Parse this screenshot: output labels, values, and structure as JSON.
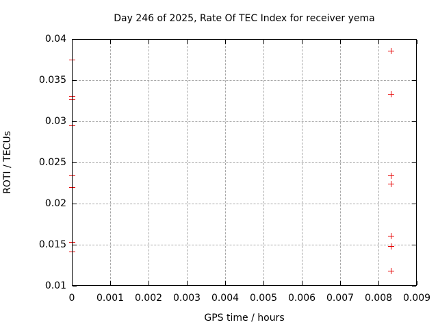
{
  "chart_data": {
    "type": "scatter",
    "title": "Day 246 of 2025, Rate Of TEC Index for receiver yema",
    "xlabel": "GPS time / hours",
    "ylabel": "ROTI / TECUs",
    "xlim": [
      0,
      0.009
    ],
    "ylim": [
      0.01,
      0.04
    ],
    "grid": true,
    "legend": "none",
    "marker": "plus",
    "marker_color": "#e60000",
    "xticks": [
      {
        "v": 0,
        "label": "0"
      },
      {
        "v": 0.001,
        "label": "0.001"
      },
      {
        "v": 0.002,
        "label": "0.002"
      },
      {
        "v": 0.003,
        "label": "0.003"
      },
      {
        "v": 0.004,
        "label": "0.004"
      },
      {
        "v": 0.005,
        "label": "0.005"
      },
      {
        "v": 0.006,
        "label": "0.006"
      },
      {
        "v": 0.007,
        "label": "0.007"
      },
      {
        "v": 0.008,
        "label": "0.008"
      },
      {
        "v": 0.009,
        "label": "0.009"
      }
    ],
    "yticks": [
      {
        "v": 0.01,
        "label": "0.01"
      },
      {
        "v": 0.015,
        "label": "0.015"
      },
      {
        "v": 0.02,
        "label": "0.02"
      },
      {
        "v": 0.025,
        "label": "0.025"
      },
      {
        "v": 0.03,
        "label": "0.03"
      },
      {
        "v": 0.035,
        "label": "0.035"
      },
      {
        "v": 0.04,
        "label": "0.04"
      }
    ],
    "series": [
      {
        "name": "ROTI",
        "points": [
          {
            "x": 0,
            "y": 0.0375
          },
          {
            "x": 0,
            "y": 0.0331
          },
          {
            "x": 0,
            "y": 0.0327
          },
          {
            "x": 0,
            "y": 0.0295
          },
          {
            "x": 0,
            "y": 0.0234
          },
          {
            "x": 0,
            "y": 0.022
          },
          {
            "x": 0,
            "y": 0.0153
          },
          {
            "x": 0,
            "y": 0.0142
          },
          {
            "x": 0.00833,
            "y": 0.0386
          },
          {
            "x": 0.00833,
            "y": 0.0333
          },
          {
            "x": 0.00833,
            "y": 0.0234
          },
          {
            "x": 0.00833,
            "y": 0.0224
          },
          {
            "x": 0.00833,
            "y": 0.0161
          },
          {
            "x": 0.00833,
            "y": 0.0148
          },
          {
            "x": 0.00833,
            "y": 0.0118
          }
        ]
      }
    ]
  }
}
